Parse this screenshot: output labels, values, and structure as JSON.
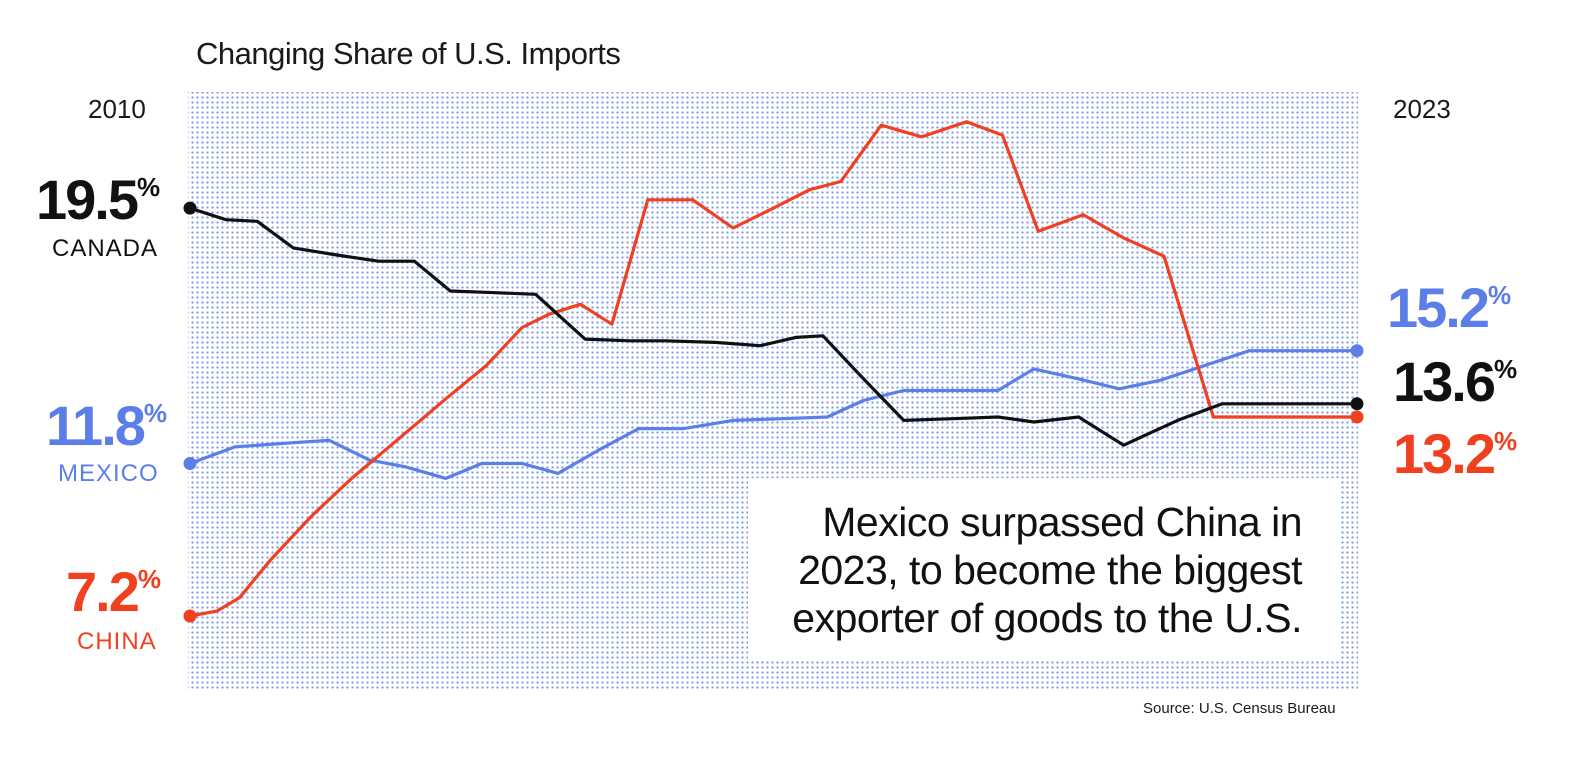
{
  "title": "Changing Share of U.S. Imports",
  "years": {
    "start": "2010",
    "end": "2023"
  },
  "labels": {
    "canada": {
      "name": "CANADA",
      "start_value": "19.5",
      "end_value": "13.6",
      "pct": "%"
    },
    "mexico": {
      "name": "MEXICO",
      "start_value": "11.8",
      "end_value": "15.2",
      "pct": "%"
    },
    "china": {
      "name": "CHINA",
      "start_value": "7.2",
      "end_value": "13.2",
      "pct": "%"
    }
  },
  "callout": "Mexico surpassed China in 2023, to become the biggest exporter of goods to the U.S.",
  "source": "Source: U.S. Census Bureau",
  "colors": {
    "canada": "#111111",
    "mexico": "#5b7ee8",
    "china": "#f0401f",
    "background_dots": "#5b7ee8"
  },
  "chart_data": {
    "type": "line",
    "title": "Changing Share of U.S. Imports",
    "x_range": [
      "2010",
      "2023"
    ],
    "ylim": [
      5,
      23
    ],
    "grid": false,
    "series": [
      {
        "name": "CANADA",
        "key": "canada",
        "x": [
          2010,
          2010.4,
          2010.75,
          2011.15,
          2011.6,
          2012.1,
          2012.5,
          2012.9,
          2013.4,
          2013.85,
          2014.4,
          2014.9,
          2015.3,
          2015.85,
          2016.35,
          2016.75,
          2017.05,
          2017.45,
          2017.95,
          2018.5,
          2019.0,
          2019.4,
          2019.9,
          2020.4,
          2021.0,
          2021.5,
          2022.0,
          2022.6,
          2023
        ],
        "values": [
          19.5,
          19.15,
          19.1,
          18.3,
          18.1,
          17.9,
          17.9,
          17.0,
          16.95,
          16.9,
          15.55,
          15.5,
          15.5,
          15.45,
          15.35,
          15.6,
          15.65,
          14.5,
          13.1,
          13.15,
          13.2,
          13.05,
          13.2,
          12.35,
          13.1,
          13.6,
          13.6,
          13.6,
          13.6
        ]
      },
      {
        "name": "MEXICO",
        "key": "mexico",
        "x": [
          2010,
          2010.5,
          2011.0,
          2011.55,
          2012.0,
          2012.4,
          2012.85,
          2013.25,
          2013.7,
          2014.1,
          2014.55,
          2015.0,
          2015.5,
          2016.05,
          2016.6,
          2017.1,
          2017.5,
          2017.95,
          2018.45,
          2019.0,
          2019.4,
          2019.9,
          2020.35,
          2020.8,
          2021.3,
          2021.8,
          2022.25,
          2022.7,
          2023
        ],
        "values": [
          11.8,
          12.3,
          12.4,
          12.5,
          11.9,
          11.7,
          11.35,
          11.8,
          11.8,
          11.5,
          12.2,
          12.85,
          12.85,
          13.1,
          13.15,
          13.2,
          13.7,
          14.0,
          14.0,
          14.0,
          14.65,
          14.35,
          14.05,
          14.3,
          14.75,
          15.2,
          15.2,
          15.2,
          15.2
        ]
      },
      {
        "name": "CHINA",
        "key": "china",
        "x": [
          2010,
          2010.3,
          2010.55,
          2010.9,
          2011.35,
          2011.8,
          2012.35,
          2012.85,
          2013.3,
          2013.7,
          2014.0,
          2014.35,
          2014.7,
          2015.1,
          2015.6,
          2016.05,
          2016.5,
          2016.9,
          2017.25,
          2017.7,
          2018.15,
          2018.65,
          2019.05,
          2019.45,
          2019.95,
          2020.4,
          2020.85,
          2021.4,
          2022.1,
          2023
        ],
        "values": [
          7.2,
          7.35,
          7.75,
          8.9,
          10.2,
          11.35,
          12.6,
          13.75,
          14.75,
          15.9,
          16.3,
          16.6,
          16.0,
          19.75,
          19.75,
          18.9,
          19.5,
          20.05,
          20.3,
          22.0,
          21.65,
          22.1,
          21.7,
          18.8,
          19.3,
          18.6,
          18.05,
          13.2,
          13.2,
          13.2
        ]
      }
    ]
  }
}
